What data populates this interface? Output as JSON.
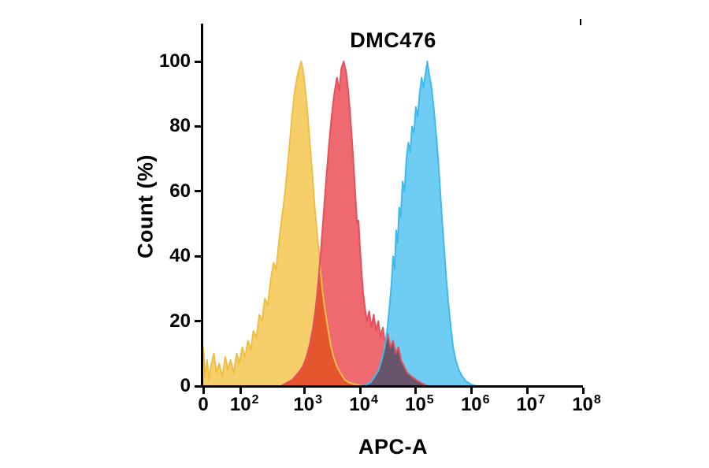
{
  "chart_data": {
    "type": "area",
    "subtype": "flow-cytometry-histogram-overlay",
    "title": "DMC476",
    "xlabel": "APC-A",
    "ylabel": "Count (%)",
    "x_scale": "biexponential-log",
    "ylim": [
      0,
      100
    ],
    "grid": false,
    "legend": "none",
    "y_ticks": [
      0,
      20,
      40,
      60,
      80,
      100
    ],
    "x_ticks": [
      {
        "label": "0",
        "exp": "",
        "u": 0.0
      },
      {
        "label": "10",
        "exp": "2",
        "u": 0.099
      },
      {
        "label": "10",
        "exp": "3",
        "u": 0.266
      },
      {
        "label": "10",
        "exp": "4",
        "u": 0.413
      },
      {
        "label": "10",
        "exp": "5",
        "u": 0.56
      },
      {
        "label": "10",
        "exp": "6",
        "u": 0.707
      },
      {
        "label": "10",
        "exp": "7",
        "u": 0.853
      },
      {
        "label": "10",
        "exp": "8",
        "u": 1.0
      }
    ],
    "series": [
      {
        "name": "yellow-histogram",
        "peak_x": "1e3",
        "peak_y": 100,
        "fill": "#F6CF6B",
        "stroke": "#EFBF45",
        "points": [
          [
            0.0,
            12
          ],
          [
            0.005,
            3
          ],
          [
            0.01,
            8
          ],
          [
            0.015,
            2
          ],
          [
            0.02,
            6
          ],
          [
            0.028,
            10
          ],
          [
            0.035,
            4
          ],
          [
            0.042,
            7
          ],
          [
            0.05,
            3
          ],
          [
            0.058,
            9
          ],
          [
            0.065,
            5
          ],
          [
            0.072,
            8
          ],
          [
            0.08,
            4
          ],
          [
            0.088,
            10
          ],
          [
            0.095,
            7
          ],
          [
            0.103,
            12
          ],
          [
            0.11,
            9
          ],
          [
            0.118,
            14
          ],
          [
            0.125,
            11
          ],
          [
            0.132,
            17
          ],
          [
            0.14,
            15
          ],
          [
            0.148,
            22
          ],
          [
            0.155,
            20
          ],
          [
            0.162,
            27
          ],
          [
            0.17,
            25
          ],
          [
            0.178,
            33
          ],
          [
            0.185,
            38
          ],
          [
            0.192,
            36
          ],
          [
            0.2,
            45
          ],
          [
            0.207,
            52
          ],
          [
            0.214,
            58
          ],
          [
            0.22,
            65
          ],
          [
            0.227,
            74
          ],
          [
            0.233,
            82
          ],
          [
            0.24,
            90
          ],
          [
            0.247,
            95
          ],
          [
            0.253,
            98
          ],
          [
            0.258,
            100
          ],
          [
            0.263,
            97
          ],
          [
            0.268,
            92
          ],
          [
            0.274,
            85
          ],
          [
            0.28,
            76
          ],
          [
            0.287,
            66
          ],
          [
            0.293,
            56
          ],
          [
            0.3,
            47
          ],
          [
            0.307,
            38
          ],
          [
            0.313,
            30
          ],
          [
            0.32,
            24
          ],
          [
            0.328,
            18
          ],
          [
            0.335,
            13
          ],
          [
            0.343,
            9
          ],
          [
            0.352,
            6
          ],
          [
            0.362,
            4
          ],
          [
            0.372,
            2
          ],
          [
            0.385,
            1
          ],
          [
            0.4,
            0.5
          ],
          [
            0.42,
            0
          ]
        ]
      },
      {
        "name": "red-histogram",
        "peak_x": "5e3",
        "peak_y": 100,
        "fill": "#EE6A70",
        "stroke": "#E4505C",
        "points": [
          [
            0.205,
            0
          ],
          [
            0.22,
            1
          ],
          [
            0.235,
            2
          ],
          [
            0.25,
            4
          ],
          [
            0.262,
            6
          ],
          [
            0.272,
            9
          ],
          [
            0.281,
            13
          ],
          [
            0.289,
            18
          ],
          [
            0.296,
            24
          ],
          [
            0.303,
            32
          ],
          [
            0.31,
            42
          ],
          [
            0.317,
            53
          ],
          [
            0.324,
            64
          ],
          [
            0.331,
            74
          ],
          [
            0.338,
            83
          ],
          [
            0.345,
            90
          ],
          [
            0.352,
            95
          ],
          [
            0.358,
            91
          ],
          [
            0.364,
            98
          ],
          [
            0.37,
            100
          ],
          [
            0.376,
            97
          ],
          [
            0.381,
            92
          ],
          [
            0.386,
            85
          ],
          [
            0.391,
            77
          ],
          [
            0.396,
            68
          ],
          [
            0.401,
            58
          ],
          [
            0.405,
            50
          ],
          [
            0.409,
            51
          ],
          [
            0.413,
            42
          ],
          [
            0.417,
            35
          ],
          [
            0.421,
            29
          ],
          [
            0.426,
            24
          ],
          [
            0.431,
            20
          ],
          [
            0.437,
            23
          ],
          [
            0.443,
            18
          ],
          [
            0.449,
            22
          ],
          [
            0.455,
            17
          ],
          [
            0.461,
            20
          ],
          [
            0.467,
            15
          ],
          [
            0.473,
            18
          ],
          [
            0.479,
            13
          ],
          [
            0.486,
            16
          ],
          [
            0.493,
            12
          ],
          [
            0.5,
            14
          ],
          [
            0.507,
            10
          ],
          [
            0.514,
            12
          ],
          [
            0.521,
            8
          ],
          [
            0.529,
            6
          ],
          [
            0.538,
            4
          ],
          [
            0.548,
            3
          ],
          [
            0.56,
            2
          ],
          [
            0.574,
            1
          ],
          [
            0.59,
            0
          ]
        ]
      },
      {
        "name": "blue-histogram",
        "peak_x": "1e5",
        "peak_y": 100,
        "fill": "#6FCCF3",
        "stroke": "#3FBAEC",
        "points": [
          [
            0.42,
            0
          ],
          [
            0.44,
            1
          ],
          [
            0.452,
            3
          ],
          [
            0.462,
            5
          ],
          [
            0.47,
            8
          ],
          [
            0.478,
            12
          ],
          [
            0.485,
            18
          ],
          [
            0.491,
            25
          ],
          [
            0.496,
            32
          ],
          [
            0.5,
            40
          ],
          [
            0.504,
            36
          ],
          [
            0.508,
            48
          ],
          [
            0.512,
            44
          ],
          [
            0.516,
            55
          ],
          [
            0.52,
            52
          ],
          [
            0.525,
            63
          ],
          [
            0.53,
            60
          ],
          [
            0.535,
            70
          ],
          [
            0.54,
            75
          ],
          [
            0.545,
            72
          ],
          [
            0.55,
            80
          ],
          [
            0.555,
            78
          ],
          [
            0.56,
            86
          ],
          [
            0.565,
            83
          ],
          [
            0.57,
            90
          ],
          [
            0.575,
            95
          ],
          [
            0.58,
            92
          ],
          [
            0.59,
            100
          ],
          [
            0.595,
            96
          ],
          [
            0.6,
            93
          ],
          [
            0.605,
            88
          ],
          [
            0.61,
            82
          ],
          [
            0.616,
            74
          ],
          [
            0.622,
            64
          ],
          [
            0.628,
            53
          ],
          [
            0.634,
            43
          ],
          [
            0.64,
            33
          ],
          [
            0.646,
            25
          ],
          [
            0.652,
            18
          ],
          [
            0.658,
            12
          ],
          [
            0.665,
            8
          ],
          [
            0.673,
            5
          ],
          [
            0.682,
            3
          ],
          [
            0.692,
            1.5
          ],
          [
            0.705,
            0.5
          ],
          [
            0.72,
            0
          ]
        ]
      }
    ]
  }
}
